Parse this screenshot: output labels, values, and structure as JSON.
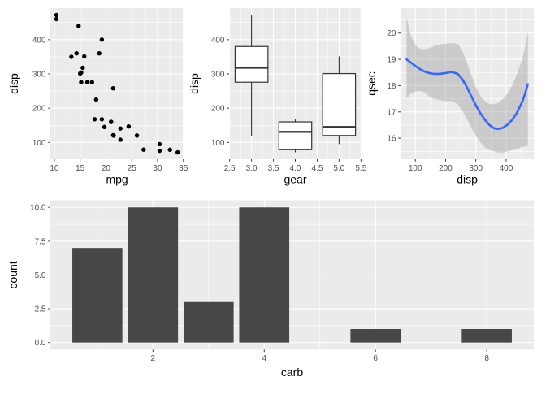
{
  "figure": {
    "background": "#ffffff",
    "panel_background": "#ebebeb",
    "grid_color": "#ffffff",
    "tick_mark_color": "#333333",
    "tick_label_color": "#4d4d4d",
    "axis_title_color": "#000000"
  },
  "chart_data": [
    {
      "type": "scatter",
      "title": "",
      "xlabel": "mpg",
      "ylabel": "disp",
      "xlim": [
        9.225,
        35.075
      ],
      "ylim": [
        51.05,
        492.05
      ],
      "xticks": {
        "values": [
          10,
          15,
          20,
          25,
          30,
          35
        ],
        "labels": [
          "10",
          "15",
          "20",
          "25",
          "30",
          "35"
        ]
      },
      "yticks": {
        "values": [
          100,
          200,
          300,
          400
        ],
        "labels": [
          "100",
          "200",
          "300",
          "400"
        ]
      },
      "grid": true,
      "point_color": "#000000",
      "points_mpg_disp": [
        [
          21.0,
          160.0
        ],
        [
          21.0,
          160.0
        ],
        [
          22.8,
          108.0
        ],
        [
          21.4,
          258.0
        ],
        [
          18.7,
          360.0
        ],
        [
          18.1,
          225.0
        ],
        [
          14.3,
          360.0
        ],
        [
          24.4,
          146.7
        ],
        [
          22.8,
          140.8
        ],
        [
          19.2,
          167.6
        ],
        [
          17.8,
          167.6
        ],
        [
          16.4,
          275.8
        ],
        [
          17.3,
          275.8
        ],
        [
          15.2,
          275.8
        ],
        [
          10.4,
          472.0
        ],
        [
          10.4,
          460.0
        ],
        [
          14.7,
          440.0
        ],
        [
          32.4,
          78.7
        ],
        [
          30.4,
          75.7
        ],
        [
          33.9,
          71.1
        ],
        [
          21.5,
          120.1
        ],
        [
          15.5,
          318.0
        ],
        [
          15.2,
          304.0
        ],
        [
          13.3,
          350.0
        ],
        [
          19.2,
          400.0
        ],
        [
          27.3,
          79.0
        ],
        [
          26.0,
          120.3
        ],
        [
          30.4,
          95.1
        ],
        [
          15.8,
          351.0
        ],
        [
          19.7,
          145.0
        ],
        [
          15.0,
          301.0
        ],
        [
          21.4,
          121.0
        ]
      ]
    },
    {
      "type": "boxplot",
      "title": "",
      "xlabel": "gear",
      "ylabel": "disp",
      "xlim": [
        2.4875,
        5.5125
      ],
      "ylim": [
        51.05,
        492.05
      ],
      "xticks": {
        "values": [
          2.5,
          3.0,
          3.5,
          4.0,
          4.5,
          5.0,
          5.5
        ],
        "labels": [
          "2.5",
          "3.0",
          "3.5",
          "4.0",
          "4.5",
          "5.0",
          "5.5"
        ]
      },
      "yticks": {
        "values": [
          100,
          200,
          300,
          400
        ],
        "labels": [
          "100",
          "200",
          "300",
          "400"
        ]
      },
      "grid": true,
      "box_fill": "#ffffff",
      "box_stroke": "#333333",
      "box_width": 0.75,
      "groups": [
        {
          "x": 3,
          "whisker_low": 120.1,
          "q1": 275.8,
          "median": 318.0,
          "q3": 380.0,
          "whisker_high": 472.0
        },
        {
          "x": 4,
          "whisker_low": 71.1,
          "q1": 78.9,
          "median": 130.9,
          "q3": 160.0,
          "whisker_high": 167.6
        },
        {
          "x": 5,
          "whisker_low": 95.1,
          "q1": 120.3,
          "median": 145.0,
          "q3": 301.0,
          "whisker_high": 351.0
        }
      ]
    },
    {
      "type": "line",
      "subtype": "loess-smooth-with-ribbon",
      "title": "",
      "xlabel": "disp",
      "ylabel": "qsec",
      "xlim": [
        51.05,
        492.05
      ],
      "ylim": [
        15.2,
        20.95
      ],
      "xticks": {
        "values": [
          100,
          200,
          300,
          400
        ],
        "labels": [
          "100",
          "200",
          "300",
          "400"
        ]
      },
      "yticks": {
        "values": [
          16,
          17,
          18,
          19,
          20
        ],
        "labels": [
          "16",
          "17",
          "18",
          "19",
          "20"
        ]
      },
      "grid": true,
      "line_color": "#3366ff",
      "ribbon_color": "#9e9e9e",
      "ribbon_opacity": 0.42,
      "x": [
        71,
        85,
        100,
        115,
        130,
        145,
        160,
        180,
        200,
        220,
        240,
        255,
        270,
        285,
        300,
        315,
        330,
        345,
        360,
        375,
        390,
        405,
        420,
        435,
        450,
        460,
        472
      ],
      "y": [
        19.0,
        18.88,
        18.75,
        18.63,
        18.54,
        18.48,
        18.45,
        18.45,
        18.48,
        18.52,
        18.45,
        18.25,
        17.95,
        17.6,
        17.25,
        16.95,
        16.7,
        16.5,
        16.38,
        16.35,
        16.4,
        16.52,
        16.7,
        16.95,
        17.3,
        17.6,
        18.05
      ],
      "ribbon_upper": [
        20.6,
        19.9,
        19.55,
        19.4,
        19.38,
        19.42,
        19.5,
        19.57,
        19.6,
        19.62,
        19.58,
        19.35,
        18.9,
        18.4,
        17.95,
        17.6,
        17.4,
        17.3,
        17.3,
        17.35,
        17.5,
        17.7,
        18.0,
        18.4,
        18.9,
        19.3,
        20.05
      ],
      "ribbon_lower": [
        17.5,
        17.7,
        17.78,
        17.8,
        17.75,
        17.6,
        17.5,
        17.45,
        17.4,
        17.42,
        17.3,
        17.05,
        16.75,
        16.4,
        16.1,
        15.85,
        15.65,
        15.55,
        15.5,
        15.45,
        15.45,
        15.5,
        15.55,
        15.6,
        15.65,
        15.68,
        15.72
      ]
    },
    {
      "type": "bar",
      "title": "",
      "xlabel": "carb",
      "ylabel": "count",
      "xlim": [
        0.155,
        8.845
      ],
      "ylim": [
        -0.525,
        10.525
      ],
      "xticks": {
        "values": [
          2,
          4,
          6,
          8
        ],
        "labels": [
          "2",
          "4",
          "6",
          "8"
        ]
      },
      "yticks": {
        "values": [
          0,
          2.5,
          5,
          7.5,
          10
        ],
        "labels": [
          "0.0",
          "2.5",
          "5.0",
          "7.5",
          "10.0"
        ]
      },
      "grid": true,
      "bar_fill": "#474747",
      "bar_width": 0.9,
      "categories": [
        1,
        2,
        3,
        4,
        6,
        8
      ],
      "values": [
        7,
        10,
        3,
        10,
        1,
        1
      ]
    }
  ]
}
